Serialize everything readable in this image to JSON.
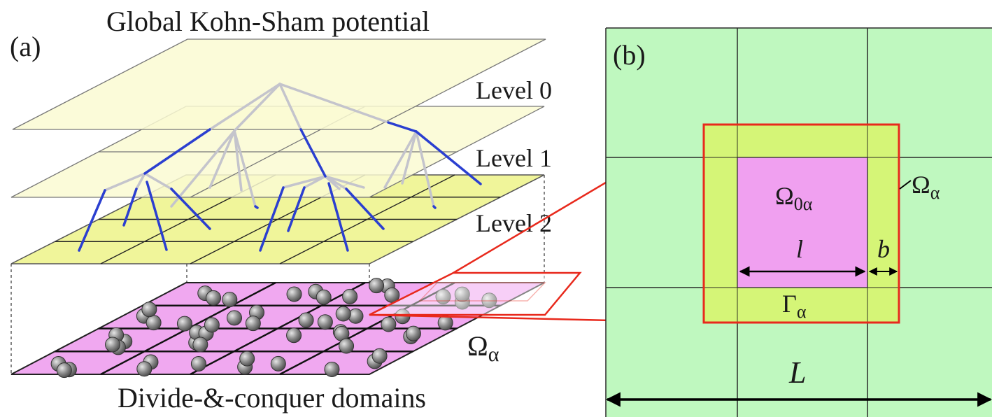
{
  "panel_a": {
    "label": "(a)",
    "title": "Global Kohn-Sham potential",
    "levels": [
      "Level 0",
      "Level 1",
      "Level 2"
    ],
    "domain_symbol": "Ω",
    "domain_subscript": "α",
    "caption": "Divide-&-conquer domains"
  },
  "panel_b": {
    "label": "(b)",
    "core_symbol": "Ω",
    "core_subscript": "0α",
    "omega_symbol": "Ω",
    "omega_subscript": "α",
    "buffer_symbol": "Γ",
    "buffer_subscript": "α",
    "core_length": "l",
    "buffer_width": "b",
    "total_length": "L"
  },
  "colors": {
    "plane_light": "#fafad2",
    "plane_level2": "#f0f59a",
    "domain_plane": "#f0a8f0",
    "tree_gray": "#c4c4cc",
    "tree_blue": "#2b3fd0",
    "atom": "#8a8a8a",
    "grid_green": "#bff8bf",
    "buffer_yellow": "#d8f56a",
    "core_magenta": "#f0a0f0",
    "highlight_red": "#e8291c"
  }
}
